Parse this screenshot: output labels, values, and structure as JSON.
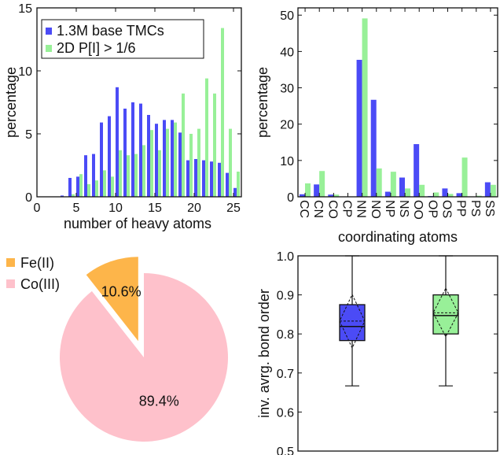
{
  "colors": {
    "blue": "#4b4bf6",
    "green": "#98f098",
    "orange": "#fdb54a",
    "pink": "#fec1cb"
  },
  "chart_data": [
    {
      "type": "bar",
      "xlabel": "number of heavy atoms",
      "ylabel": "percentage",
      "xlim": [
        0,
        26
      ],
      "ylim": [
        0,
        15
      ],
      "xticks": [
        "0",
        "5",
        "10",
        "15",
        "20",
        "25"
      ],
      "yticks": [
        "0",
        "5",
        "10",
        "15"
      ],
      "legend_position": "top-left",
      "series": [
        {
          "name": "1.3M base TMCs",
          "color": "blue",
          "x": [
            3,
            4,
            5,
            6,
            7,
            8,
            9,
            10,
            11,
            12,
            13,
            14,
            15,
            16,
            17,
            18,
            19,
            20,
            21,
            22,
            23,
            24,
            25
          ],
          "values": [
            0.1,
            1.5,
            1.6,
            3.3,
            3.4,
            5.9,
            6.4,
            8.7,
            7.0,
            7.5,
            7.4,
            6.5,
            5.8,
            6.1,
            6.1,
            5.1,
            2.9,
            3.0,
            2.9,
            2.8,
            2.7,
            1.9,
            0.7
          ]
        },
        {
          "name": "2D P[I] > 1/6",
          "color": "green",
          "x": [
            4,
            5,
            6,
            7,
            8,
            9,
            10,
            11,
            12,
            13,
            14,
            15,
            16,
            17,
            18,
            19,
            20,
            21,
            22,
            23,
            24,
            25
          ],
          "values": [
            0.2,
            1.8,
            1.0,
            1.3,
            2.1,
            1.6,
            3.7,
            3.3,
            3.4,
            4.1,
            5.3,
            3.7,
            5.4,
            5.9,
            8.2,
            5.0,
            5.4,
            9.4,
            8.2,
            13.4,
            5.4,
            2.0
          ]
        }
      ]
    },
    {
      "type": "bar",
      "xlabel": "coordinating atoms",
      "ylabel": "percentage",
      "ylim": [
        0,
        52
      ],
      "yticks": [
        "0",
        "10",
        "20",
        "30",
        "40",
        "50"
      ],
      "categories": [
        "CC",
        "CN",
        "CO",
        "CP",
        "NN",
        "NO",
        "NP",
        "NS",
        "OO",
        "OP",
        "OS",
        "PP",
        "PS",
        "SS"
      ],
      "series": [
        {
          "color": "blue",
          "values": [
            0.7,
            3.4,
            0.6,
            0,
            37.7,
            26.7,
            1.4,
            5.3,
            14.5,
            0.2,
            2.3,
            1.0,
            0,
            4.0
          ]
        },
        {
          "color": "green",
          "values": [
            3.7,
            7.1,
            0.6,
            0.1,
            49.1,
            7.8,
            6.9,
            2.3,
            3.3,
            1.2,
            0.8,
            10.8,
            0.3,
            3.3
          ]
        }
      ]
    },
    {
      "type": "pie",
      "legend_position": "top-left",
      "slices": [
        {
          "name": "Fe(II)",
          "value": 10.6,
          "label": "10.6%",
          "color": "orange",
          "exploded": true
        },
        {
          "name": "Co(III)",
          "value": 89.4,
          "label": "89.4%",
          "color": "pink",
          "exploded": false
        }
      ]
    },
    {
      "type": "box",
      "ylabel": "inv. avrg. bond order",
      "ylim": [
        0.5,
        1.0
      ],
      "yticks": [
        "0.5",
        "0.6",
        "0.7",
        "0.8",
        "0.9",
        "1.0"
      ],
      "boxes": [
        {
          "color": "blue",
          "whisker_low": 0.667,
          "q1": 0.783,
          "median": 0.819,
          "mean": 0.833,
          "q3": 0.875,
          "whisker_high": 1.0,
          "sd_low": 0.764,
          "sd_high": 0.901
        },
        {
          "color": "green",
          "whisker_low": 0.667,
          "q1": 0.8,
          "median": 0.847,
          "mean": 0.854,
          "q3": 0.9,
          "whisker_high": 1.0,
          "sd_low": 0.793,
          "sd_high": 0.917
        }
      ]
    }
  ]
}
